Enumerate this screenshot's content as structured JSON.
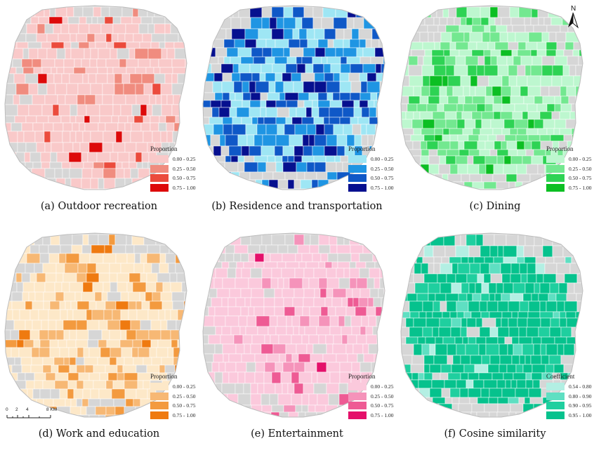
{
  "panels": [
    {
      "caption": "(a)  Outdoor recreation",
      "variable": "Outdoor recreation",
      "legend_title": "Proportion",
      "classes": [
        "0.00 - 0.25",
        "0.25 - 0.50",
        "0.50 - 0.75",
        "0.75 - 1.00"
      ],
      "colors": [
        "#f9c9c9",
        "#f08c7f",
        "#eb4b3c",
        "#dd0a0a"
      ],
      "class_weights": [
        0.86,
        0.09,
        0.035,
        0.015
      ]
    },
    {
      "caption": "(b)  Residence and transportation",
      "variable": "Residence and transportation",
      "legend_title": "Proportion",
      "classes": [
        "0.00 - 0.25",
        "0.25 - 0.50",
        "0.50 - 0.75",
        "0.75 - 1.00"
      ],
      "colors": [
        "#9ee6f4",
        "#1f95e3",
        "#0f58c7",
        "#06108f"
      ],
      "class_weights": [
        0.36,
        0.27,
        0.22,
        0.15
      ]
    },
    {
      "caption": "(c)  Dining",
      "variable": "Dining",
      "legend_title": "Proportion",
      "classes": [
        "0.00 - 0.25",
        "0.25 - 0.50",
        "0.50 - 0.75",
        "0.75 - 1.00"
      ],
      "colors": [
        "#bdf7cf",
        "#73e890",
        "#2ed354",
        "#0cbf23"
      ],
      "class_weights": [
        0.5,
        0.3,
        0.14,
        0.06
      ]
    },
    {
      "caption": "(d)  Work and education",
      "variable": "Work and education",
      "legend_title": "Proportion",
      "classes": [
        "0.00 - 0.25",
        "0.25 - 0.50",
        "0.50 - 0.75",
        "0.75 - 1.00"
      ],
      "colors": [
        "#fde8c8",
        "#f7b874",
        "#f39a3f",
        "#ef7a10"
      ],
      "class_weights": [
        0.7,
        0.18,
        0.08,
        0.04
      ]
    },
    {
      "caption": "(e)  Entertainment",
      "variable": "Entertainment",
      "legend_title": "Proportion",
      "classes": [
        "0.00 - 0.25",
        "0.25 - 0.50",
        "0.50 - 0.75",
        "0.75 - 1.00"
      ],
      "colors": [
        "#fbc9dc",
        "#f593ba",
        "#ee5b94",
        "#e4106a"
      ],
      "class_weights": [
        0.8,
        0.12,
        0.055,
        0.025
      ]
    },
    {
      "caption": "(f)  Cosine similarity",
      "variable": "Cosine similarity",
      "legend_title": "Coefficient",
      "classes": [
        "0.54 - 0.80",
        "0.80 - 0.90",
        "0.90 - 0.95",
        "0.95 - 1.00"
      ],
      "colors": [
        "#b3efe3",
        "#5fdfc2",
        "#1fcf9f",
        "#06c28d"
      ],
      "class_weights": [
        0.04,
        0.1,
        0.22,
        0.64
      ]
    }
  ],
  "north_arrow": {
    "label": "N"
  },
  "scale_bar": {
    "ticks": [
      "0",
      "2",
      "4",
      "8 KM"
    ]
  },
  "no_data_color": "#d6d6d6",
  "boundary_color": "#ffffff"
}
